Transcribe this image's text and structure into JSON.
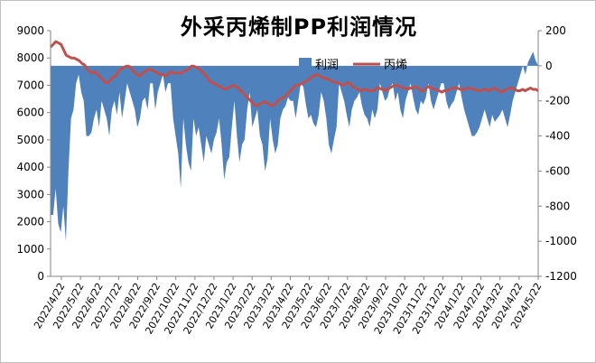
{
  "chart_data": {
    "type": "area+line",
    "title": "外采丙烯制PP利润情况",
    "legend": {
      "position": "top-right",
      "entries": [
        "利润",
        "丙烯"
      ]
    },
    "y_left": {
      "ticks": [
        "9000",
        "8000",
        "7000",
        "6000",
        "5000",
        "4000",
        "3000",
        "2000",
        "1000",
        "0"
      ],
      "range": [
        0,
        9000
      ]
    },
    "y_right": {
      "ticks": [
        "200",
        "0",
        "-200",
        "-400",
        "-600",
        "-800",
        "-1000",
        "-1200"
      ],
      "range": [
        -1200,
        200
      ]
    },
    "x_ticks": [
      "2022/4/22",
      "2022/5/22",
      "2022/6/22",
      "2022/7/22",
      "2022/8/22",
      "2022/9/22",
      "2022/10/22",
      "2022/11/22",
      "2022/12/22",
      "2023/1/22",
      "2023/2/22",
      "2023/3/22",
      "2023/4/22",
      "2023/5/22",
      "2023/6/22",
      "2023/7/22",
      "2023/8/22",
      "2023/9/22",
      "2023/10/22",
      "2023/11/22",
      "2023/12/22",
      "2024/1/22",
      "2024/2/22",
      "2024/3/22",
      "2024/4/22",
      "2024/5/22"
    ],
    "series": [
      {
        "name": "利润",
        "type": "area",
        "axis": "right",
        "color": "#4f81bd",
        "values": [
          -850,
          -850,
          -700,
          -900,
          -950,
          -800,
          -1000,
          -600,
          -300,
          -250,
          -100,
          -50,
          -150,
          -200,
          -400,
          -400,
          -380,
          -300,
          -250,
          -350,
          -200,
          -250,
          -300,
          -400,
          -250,
          -200,
          -280,
          -150,
          -300,
          -200,
          -100,
          -150,
          -200,
          -250,
          -350,
          -300,
          -200,
          -180,
          -250,
          -100,
          -100,
          -250,
          -150,
          -100,
          -50,
          -150,
          -100,
          -100,
          -300,
          -400,
          -500,
          -700,
          -300,
          -450,
          -550,
          -600,
          -300,
          -400,
          -350,
          -450,
          -550,
          -400,
          -450,
          -500,
          -420,
          -380,
          -300,
          -450,
          -650,
          -550,
          -520,
          -350,
          -200,
          -400,
          -550,
          -450,
          -420,
          -250,
          -150,
          -350,
          -300,
          -250,
          -400,
          -450,
          -600,
          -530,
          -300,
          -420,
          -500,
          -450,
          -300,
          -250,
          -230,
          -180,
          -200,
          -200,
          -300,
          -200,
          -100,
          -120,
          -220,
          -300,
          -280,
          -330,
          -350,
          -280,
          -150,
          -200,
          -300,
          -450,
          -500,
          -420,
          -350,
          -100,
          -150,
          -200,
          -280,
          -350,
          -250,
          -200,
          -180,
          -150,
          -230,
          -280,
          -300,
          -350,
          -250,
          -300,
          -250,
          -100,
          -150,
          -200,
          -180,
          -120,
          -100,
          -200,
          -150,
          -250,
          -300,
          -200,
          -150,
          -100,
          -180,
          -250,
          -280,
          -200,
          -220,
          -180,
          -100,
          -200,
          -250,
          -200,
          -150,
          -100,
          -100,
          -200,
          -250,
          -220,
          -200,
          -150,
          -100,
          -180,
          -250,
          -300,
          -350,
          -400,
          -400,
          -380,
          -350,
          -300,
          -250,
          -300,
          -350,
          -280,
          -320,
          -300,
          -280,
          -250,
          -300,
          -350,
          -280,
          -200,
          -150,
          -100,
          -50,
          0,
          -50,
          20,
          50,
          80,
          30,
          0
        ]
      },
      {
        "name": "丙烯",
        "type": "line",
        "axis": "left",
        "color": "#c0504d",
        "values": [
          8400,
          8500,
          8600,
          8550,
          8500,
          8300,
          8100,
          8050,
          8000,
          8000,
          7950,
          7900,
          7800,
          7750,
          7600,
          7500,
          7450,
          7500,
          7400,
          7300,
          7200,
          7100,
          7100,
          7200,
          7300,
          7350,
          7500,
          7600,
          7650,
          7700,
          7700,
          7600,
          7500,
          7400,
          7350,
          7400,
          7500,
          7550,
          7600,
          7550,
          7500,
          7450,
          7400,
          7400,
          7350,
          7400,
          7500,
          7450,
          7450,
          7450,
          7450,
          7500,
          7550,
          7600,
          7700,
          7700,
          7650,
          7600,
          7500,
          7400,
          7300,
          7150,
          7100,
          7050,
          7000,
          6950,
          6900,
          6850,
          6900,
          6950,
          7000,
          6950,
          6900,
          6800,
          6700,
          6600,
          6500,
          6400,
          6300,
          6250,
          6300,
          6350,
          6400,
          6350,
          6300,
          6250,
          6300,
          6400,
          6500,
          6550,
          6600,
          6700,
          6800,
          6900,
          7000,
          7000,
          7050,
          7100,
          7150,
          7200,
          7300,
          7350,
          7400,
          7350,
          7300,
          7250,
          7250,
          7200,
          7150,
          7100,
          7100,
          7050,
          7000,
          7050,
          7100,
          7050,
          6950,
          6900,
          6850,
          6800,
          6850,
          6850,
          6800,
          6800,
          6800,
          6900,
          6900,
          6850,
          6850,
          6800,
          6900,
          6950,
          7000,
          7000,
          6950,
          6900,
          6900,
          6850,
          6900,
          6900,
          6950,
          6900,
          6800,
          6800,
          6900,
          6950,
          6900,
          6850,
          6850,
          6800,
          6750,
          6800,
          6800,
          6850,
          6900,
          6900,
          6900,
          6850,
          6850,
          6850,
          6900,
          6900,
          6850,
          6850,
          6800,
          6800,
          6850,
          6850,
          6800,
          6850,
          6900,
          6850,
          6800,
          6750,
          6800,
          6850,
          6900,
          6900,
          6850,
          6800,
          6800,
          6850,
          6800,
          6850,
          6900,
          6850,
          6850,
          6800
        ]
      }
    ]
  }
}
